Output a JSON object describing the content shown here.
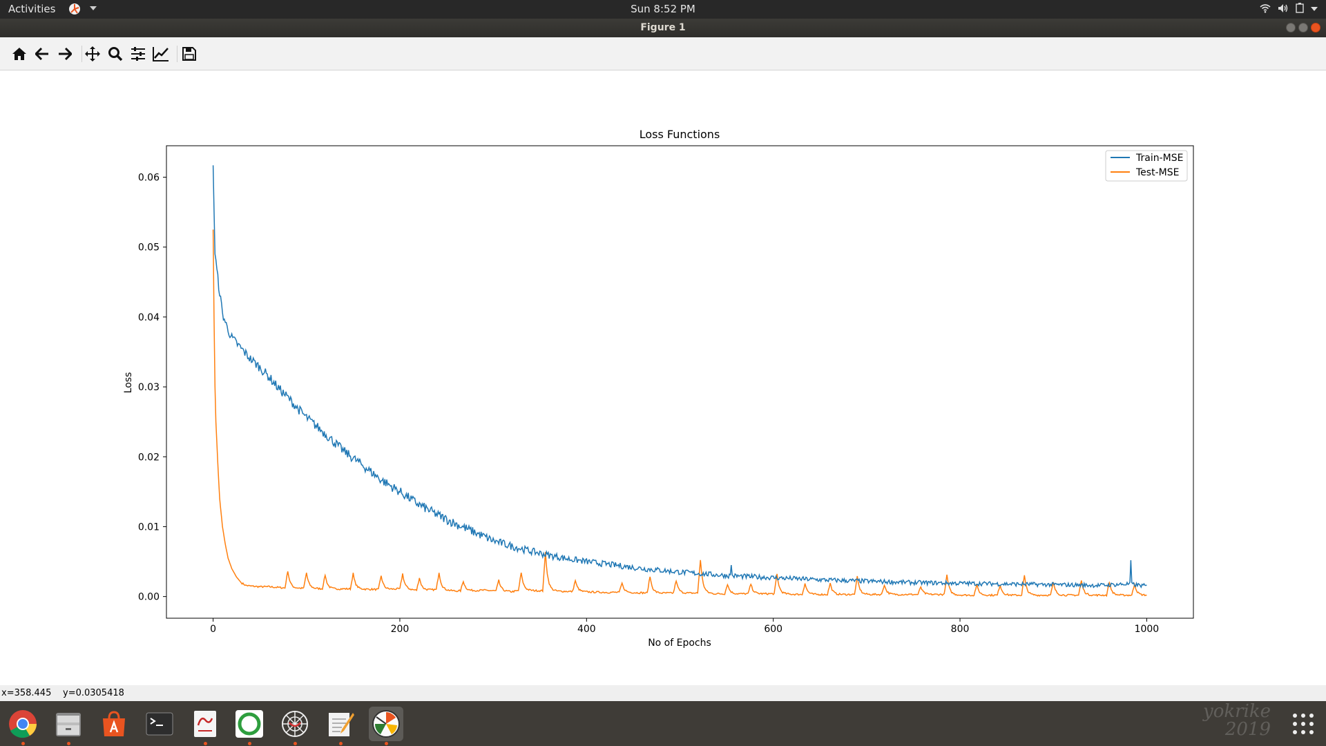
{
  "topbar": {
    "activities": "Activities",
    "clock": "Sun  8:52 PM"
  },
  "window": {
    "title": "Figure 1"
  },
  "toolbar": {
    "tools": [
      "home-icon",
      "back-arrow-icon",
      "forward-arrow-icon",
      "pan-icon",
      "zoom-icon",
      "configure-subplots-icon",
      "edit-axis-icon",
      "save-icon"
    ]
  },
  "status": {
    "x": "x=358.445",
    "y": "y=0.0305418"
  },
  "dock": {
    "apps": [
      "chrome-icon",
      "files-icon",
      "software-center-icon",
      "terminal-icon",
      "document-viewer-icon",
      "circle-app-icon",
      "web-icon",
      "text-editor-icon",
      "figure-app-icon"
    ]
  },
  "signature": {
    "text": "2019"
  },
  "colors": {
    "train": "#1f77b4",
    "test": "#ff7f0e",
    "accent": "#e95420"
  },
  "chart_data": {
    "type": "line",
    "title": "Loss Functions",
    "xlabel": "No of Epochs",
    "ylabel": "Loss",
    "xlim": [
      -50,
      1050
    ],
    "ylim": [
      -0.0031,
      0.0645
    ],
    "xticks": [
      0,
      200,
      400,
      600,
      800,
      1000
    ],
    "yticks": [
      0.0,
      0.01,
      0.02,
      0.03,
      0.04,
      0.05,
      0.06
    ],
    "ytick_labels": [
      "0.00",
      "0.01",
      "0.02",
      "0.03",
      "0.04",
      "0.05",
      "0.06"
    ],
    "legend": "top-right",
    "grid": false,
    "series": [
      {
        "name": "Train-MSE",
        "color": "#1f77b4",
        "x": [
          0,
          2,
          5,
          10,
          15,
          20,
          30,
          40,
          50,
          60,
          70,
          80,
          90,
          100,
          120,
          140,
          160,
          180,
          200,
          220,
          240,
          260,
          280,
          300,
          320,
          340,
          360,
          380,
          400,
          430,
          460,
          500,
          550,
          600,
          650,
          700,
          750,
          800,
          850,
          900,
          950,
          980,
          1000
        ],
        "y": [
          0.0617,
          0.049,
          0.0455,
          0.0405,
          0.0385,
          0.037,
          0.0355,
          0.034,
          0.0328,
          0.0314,
          0.0298,
          0.0285,
          0.027,
          0.0256,
          0.0233,
          0.0208,
          0.0188,
          0.0167,
          0.015,
          0.0132,
          0.0117,
          0.0104,
          0.0092,
          0.008,
          0.0072,
          0.0065,
          0.0059,
          0.0054,
          0.005,
          0.0045,
          0.004,
          0.0035,
          0.003,
          0.0027,
          0.0024,
          0.0022,
          0.002,
          0.0019,
          0.0018,
          0.0017,
          0.0016,
          0.0018,
          0.0015
        ]
      },
      {
        "name": "Test-MSE",
        "color": "#ff7f0e",
        "x": [
          0,
          1,
          2,
          3,
          5,
          7,
          10,
          13,
          16,
          20,
          25,
          30,
          35,
          40,
          50,
          60,
          70,
          80,
          100,
          120,
          150,
          180,
          200,
          220,
          240,
          260,
          290,
          320,
          330,
          360,
          390,
          420,
          440,
          470,
          500,
          520,
          540,
          560,
          580,
          600,
          630,
          660,
          690,
          720,
          750,
          780,
          810,
          840,
          870,
          900,
          930,
          960,
          985,
          1000
        ],
        "y": [
          0.0525,
          0.04,
          0.03,
          0.025,
          0.019,
          0.014,
          0.01,
          0.0075,
          0.0055,
          0.004,
          0.0028,
          0.002,
          0.0016,
          0.0015,
          0.0014,
          0.0014,
          0.0013,
          0.0012,
          0.0012,
          0.0011,
          0.0011,
          0.001,
          0.0011,
          0.0009,
          0.001,
          0.0008,
          0.0009,
          0.0007,
          0.0009,
          0.0008,
          0.0007,
          0.0006,
          0.0006,
          0.0005,
          0.0005,
          0.0005,
          0.0004,
          0.0004,
          0.0004,
          0.0004,
          0.0003,
          0.0003,
          0.0003,
          0.0003,
          0.0003,
          0.0003,
          0.0002,
          0.0002,
          0.0002,
          0.0002,
          0.0002,
          0.0002,
          0.0002,
          0.0002
        ],
        "spikes": [
          {
            "x": 80,
            "y": 0.0025
          },
          {
            "x": 100,
            "y": 0.0022
          },
          {
            "x": 120,
            "y": 0.002
          },
          {
            "x": 150,
            "y": 0.0022
          },
          {
            "x": 180,
            "y": 0.002
          },
          {
            "x": 203,
            "y": 0.0022
          },
          {
            "x": 221,
            "y": 0.0018
          },
          {
            "x": 242,
            "y": 0.0025
          },
          {
            "x": 268,
            "y": 0.0014
          },
          {
            "x": 306,
            "y": 0.0015
          },
          {
            "x": 330,
            "y": 0.0025
          },
          {
            "x": 356,
            "y": 0.0055
          },
          {
            "x": 388,
            "y": 0.0016
          },
          {
            "x": 438,
            "y": 0.0013
          },
          {
            "x": 468,
            "y": 0.0024
          },
          {
            "x": 496,
            "y": 0.0018
          },
          {
            "x": 522,
            "y": 0.0048
          },
          {
            "x": 551,
            "y": 0.0014
          },
          {
            "x": 576,
            "y": 0.0014
          },
          {
            "x": 604,
            "y": 0.0028
          },
          {
            "x": 634,
            "y": 0.0016
          },
          {
            "x": 661,
            "y": 0.0016
          },
          {
            "x": 690,
            "y": 0.0025
          },
          {
            "x": 719,
            "y": 0.0014
          },
          {
            "x": 758,
            "y": 0.0011
          },
          {
            "x": 786,
            "y": 0.0028
          },
          {
            "x": 818,
            "y": 0.0015
          },
          {
            "x": 843,
            "y": 0.0015
          },
          {
            "x": 869,
            "y": 0.0028
          },
          {
            "x": 900,
            "y": 0.0018
          },
          {
            "x": 930,
            "y": 0.0021
          },
          {
            "x": 960,
            "y": 0.0019
          },
          {
            "x": 987,
            "y": 0.0016
          }
        ]
      }
    ]
  }
}
